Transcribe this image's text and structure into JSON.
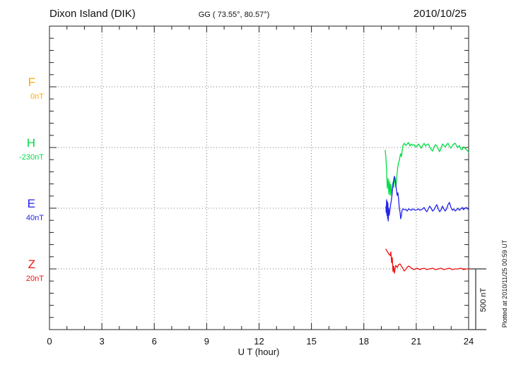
{
  "header": {
    "station_title": "Dixon Island (DIK)",
    "coords_label": "GG ( 73.55°,  80.57°)",
    "date_label": "2010/10/25"
  },
  "side_note": "Plotted at 2010/11/25 00:59 UT",
  "scale_bar": {
    "label": "500 nT",
    "nT": 500
  },
  "x_axis": {
    "label": "U T (hour)",
    "min": 0,
    "max": 24,
    "major_step": 3,
    "minor_step": 1,
    "tick_labels": [
      "0",
      "3",
      "6",
      "9",
      "12",
      "15",
      "18",
      "21",
      "24"
    ]
  },
  "components": [
    {
      "id": "F",
      "letter": "F",
      "baseline_label": "0nT",
      "baseline_nT": 0,
      "color": "#ffaa00"
    },
    {
      "id": "H",
      "letter": "H",
      "baseline_label": "-230nT",
      "baseline_nT": -230,
      "color": "#00dd44"
    },
    {
      "id": "E",
      "letter": "E",
      "baseline_label": "40nT",
      "baseline_nT": 40,
      "color": "#2222ee"
    },
    {
      "id": "Z",
      "letter": "Z",
      "baseline_label": "20nT",
      "baseline_nT": 20,
      "color": "#ee1111"
    }
  ],
  "chart_data": {
    "type": "line",
    "title": "Dixon Island (DIK)",
    "xlabel": "U T (hour)",
    "x_range": [
      0,
      24
    ],
    "grid": "dotted",
    "nT_per_division": 500,
    "legend_position": "left-margin",
    "series": [
      {
        "name": "F",
        "color": "#ffaa00",
        "baseline_nT": 0,
        "points": []
      },
      {
        "name": "H",
        "color": "#00dd44",
        "baseline_nT": -230,
        "points": [
          [
            19.22,
            -253
          ],
          [
            19.26,
            -306
          ],
          [
            19.3,
            -410
          ],
          [
            19.34,
            -567
          ],
          [
            19.39,
            -486
          ],
          [
            19.43,
            -614
          ],
          [
            19.47,
            -509
          ],
          [
            19.51,
            -625
          ],
          [
            19.55,
            -532
          ],
          [
            19.59,
            -620
          ],
          [
            19.63,
            -573
          ],
          [
            19.67,
            -515
          ],
          [
            19.71,
            -561
          ],
          [
            19.75,
            -468
          ],
          [
            19.79,
            -515
          ],
          [
            19.83,
            -556
          ],
          [
            19.87,
            -503
          ],
          [
            19.91,
            -439
          ],
          [
            19.95,
            -387
          ],
          [
            19.99,
            -352
          ],
          [
            20.03,
            -340
          ],
          [
            20.07,
            -300
          ],
          [
            20.11,
            -282
          ],
          [
            20.15,
            -306
          ],
          [
            20.19,
            -259
          ],
          [
            20.23,
            -218
          ],
          [
            20.27,
            -207
          ],
          [
            20.31,
            -195
          ],
          [
            20.4,
            -213
          ],
          [
            20.48,
            -201
          ],
          [
            20.56,
            -189
          ],
          [
            20.64,
            -218
          ],
          [
            20.72,
            -201
          ],
          [
            20.8,
            -213
          ],
          [
            20.88,
            -207
          ],
          [
            20.96,
            -224
          ],
          [
            21.05,
            -218
          ],
          [
            21.13,
            -201
          ],
          [
            21.21,
            -218
          ],
          [
            21.29,
            -236
          ],
          [
            21.37,
            -213
          ],
          [
            21.45,
            -195
          ],
          [
            21.53,
            -218
          ],
          [
            21.61,
            -207
          ],
          [
            21.69,
            -201
          ],
          [
            21.77,
            -224
          ],
          [
            21.85,
            -247
          ],
          [
            21.94,
            -259
          ],
          [
            22.02,
            -224
          ],
          [
            22.1,
            -207
          ],
          [
            22.18,
            -218
          ],
          [
            22.26,
            -242
          ],
          [
            22.34,
            -265
          ],
          [
            22.42,
            -236
          ],
          [
            22.5,
            -201
          ],
          [
            22.58,
            -213
          ],
          [
            22.66,
            -224
          ],
          [
            22.74,
            -207
          ],
          [
            22.82,
            -195
          ],
          [
            22.9,
            -218
          ],
          [
            22.99,
            -236
          ],
          [
            23.07,
            -213
          ],
          [
            23.15,
            -201
          ],
          [
            23.23,
            -195
          ],
          [
            23.31,
            -218
          ],
          [
            23.39,
            -230
          ],
          [
            23.47,
            -213
          ],
          [
            23.55,
            -242
          ],
          [
            23.63,
            -247
          ],
          [
            23.71,
            -224
          ],
          [
            23.79,
            -236
          ],
          [
            23.87,
            -247
          ],
          [
            23.95,
            -259
          ],
          [
            24.0,
            -271
          ]
        ]
      },
      {
        "name": "E",
        "color": "#2222ee",
        "baseline_nT": 40,
        "points": [
          [
            19.26,
            52
          ],
          [
            19.28,
            5
          ],
          [
            19.3,
            110
          ],
          [
            19.32,
            -18
          ],
          [
            19.34,
            95
          ],
          [
            19.36,
            -47
          ],
          [
            19.38,
            81
          ],
          [
            19.4,
            -65
          ],
          [
            19.42,
            40
          ],
          [
            19.45,
            -18
          ],
          [
            19.49,
            23
          ],
          [
            19.53,
            69
          ],
          [
            19.57,
            98
          ],
          [
            19.61,
            145
          ],
          [
            19.65,
            214
          ],
          [
            19.71,
            273
          ],
          [
            19.75,
            302
          ],
          [
            19.79,
            284
          ],
          [
            19.83,
            232
          ],
          [
            19.87,
            185
          ],
          [
            19.91,
            145
          ],
          [
            19.95,
            168
          ],
          [
            19.99,
            116
          ],
          [
            20.03,
            40
          ],
          [
            20.07,
            11
          ],
          [
            20.11,
            -47
          ],
          [
            20.15,
            -18
          ],
          [
            20.19,
            23
          ],
          [
            20.23,
            34
          ],
          [
            20.31,
            28
          ],
          [
            20.4,
            30
          ],
          [
            20.48,
            17
          ],
          [
            20.56,
            34
          ],
          [
            20.64,
            28
          ],
          [
            20.72,
            23
          ],
          [
            20.8,
            34
          ],
          [
            20.88,
            28
          ],
          [
            20.96,
            23
          ],
          [
            21.05,
            28
          ],
          [
            21.13,
            34
          ],
          [
            21.21,
            23
          ],
          [
            21.29,
            28
          ],
          [
            21.37,
            34
          ],
          [
            21.45,
            46
          ],
          [
            21.53,
            23
          ],
          [
            21.61,
            11
          ],
          [
            21.69,
            34
          ],
          [
            21.77,
            57
          ],
          [
            21.85,
            40
          ],
          [
            21.94,
            17
          ],
          [
            22.02,
            28
          ],
          [
            22.1,
            52
          ],
          [
            22.18,
            69
          ],
          [
            22.26,
            34
          ],
          [
            22.34,
            11
          ],
          [
            22.42,
            28
          ],
          [
            22.5,
            57
          ],
          [
            22.58,
            34
          ],
          [
            22.66,
            17
          ],
          [
            22.74,
            34
          ],
          [
            22.82,
            69
          ],
          [
            22.9,
            87
          ],
          [
            22.99,
            46
          ],
          [
            23.07,
            23
          ],
          [
            23.15,
            34
          ],
          [
            23.23,
            17
          ],
          [
            23.31,
            28
          ],
          [
            23.39,
            40
          ],
          [
            23.47,
            23
          ],
          [
            23.55,
            34
          ],
          [
            23.63,
            46
          ],
          [
            23.71,
            28
          ],
          [
            23.79,
            40
          ],
          [
            23.87,
            46
          ],
          [
            23.95,
            34
          ],
          [
            24.0,
            28
          ]
        ]
      },
      {
        "name": "Z",
        "color": "#ee1111",
        "baseline_nT": 20,
        "points": [
          [
            19.26,
            183
          ],
          [
            19.34,
            165
          ],
          [
            19.43,
            142
          ],
          [
            19.51,
            130
          ],
          [
            19.55,
            160
          ],
          [
            19.59,
            72
          ],
          [
            19.63,
            113
          ],
          [
            19.67,
            -3
          ],
          [
            19.71,
            43
          ],
          [
            19.75,
            -15
          ],
          [
            19.79,
            20
          ],
          [
            19.83,
            49
          ],
          [
            19.91,
            32
          ],
          [
            19.99,
            55
          ],
          [
            20.07,
            61
          ],
          [
            20.15,
            43
          ],
          [
            20.23,
            26
          ],
          [
            20.31,
            3
          ],
          [
            20.4,
            14
          ],
          [
            20.48,
            32
          ],
          [
            20.56,
            43
          ],
          [
            20.64,
            37
          ],
          [
            20.72,
            26
          ],
          [
            20.8,
            20
          ],
          [
            20.88,
            14
          ],
          [
            20.96,
            20
          ],
          [
            21.05,
            26
          ],
          [
            21.13,
            20
          ],
          [
            21.21,
            14
          ],
          [
            21.29,
            20
          ],
          [
            21.45,
            26
          ],
          [
            21.61,
            14
          ],
          [
            21.77,
            20
          ],
          [
            21.94,
            26
          ],
          [
            22.1,
            14
          ],
          [
            22.26,
            20
          ],
          [
            22.42,
            26
          ],
          [
            22.58,
            14
          ],
          [
            22.74,
            20
          ],
          [
            22.9,
            26
          ],
          [
            23.07,
            14
          ],
          [
            23.23,
            20
          ],
          [
            23.39,
            20
          ],
          [
            23.55,
            26
          ],
          [
            23.71,
            14
          ],
          [
            23.87,
            20
          ],
          [
            24.0,
            20
          ]
        ]
      }
    ]
  }
}
